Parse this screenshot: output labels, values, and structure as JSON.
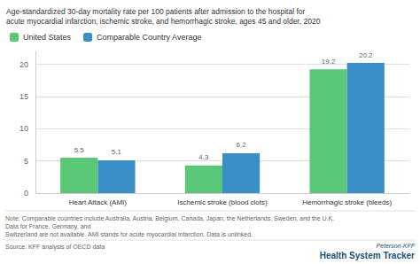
{
  "chart_data": {
    "type": "bar",
    "title": [
      "Age-standardized 30-day mortality rate per 100 patients after admission to the hospital for",
      "acute myocardial infarction, ischemic stroke, and hemorrhagic stroke, ages 45 and older, 2020"
    ],
    "categories": [
      "Heart Attack (AMI)",
      "Ischemic stroke (blood clots)",
      "Hemorrhagic stroke (bleeds)"
    ],
    "series": [
      {
        "name": "United States",
        "color": "#5bc878",
        "values": [
          5.5,
          4.3,
          19.2
        ]
      },
      {
        "name": "Comparable Country Average",
        "color": "#3a8fc7",
        "values": [
          5.1,
          6.2,
          20.2
        ]
      }
    ],
    "ylim": [
      0,
      22
    ],
    "yticks": [
      0,
      5,
      10,
      15,
      20
    ],
    "grid": true,
    "legend": "upper left",
    "data_labels": true,
    "annotations": [
      "Note: Comparable countries include Australia, Austria, Belgium, Canada, Japan, the Netherlands, Sweden, and the U.K. Data for France, Germany, and",
      "Switzerland are not available. AMI stands for acute myocardial infarction. Data is unlinked.",
      "Source: KFF analysis of OECD data",
      "Peterson-KFF",
      "Health System Tracker"
    ]
  }
}
